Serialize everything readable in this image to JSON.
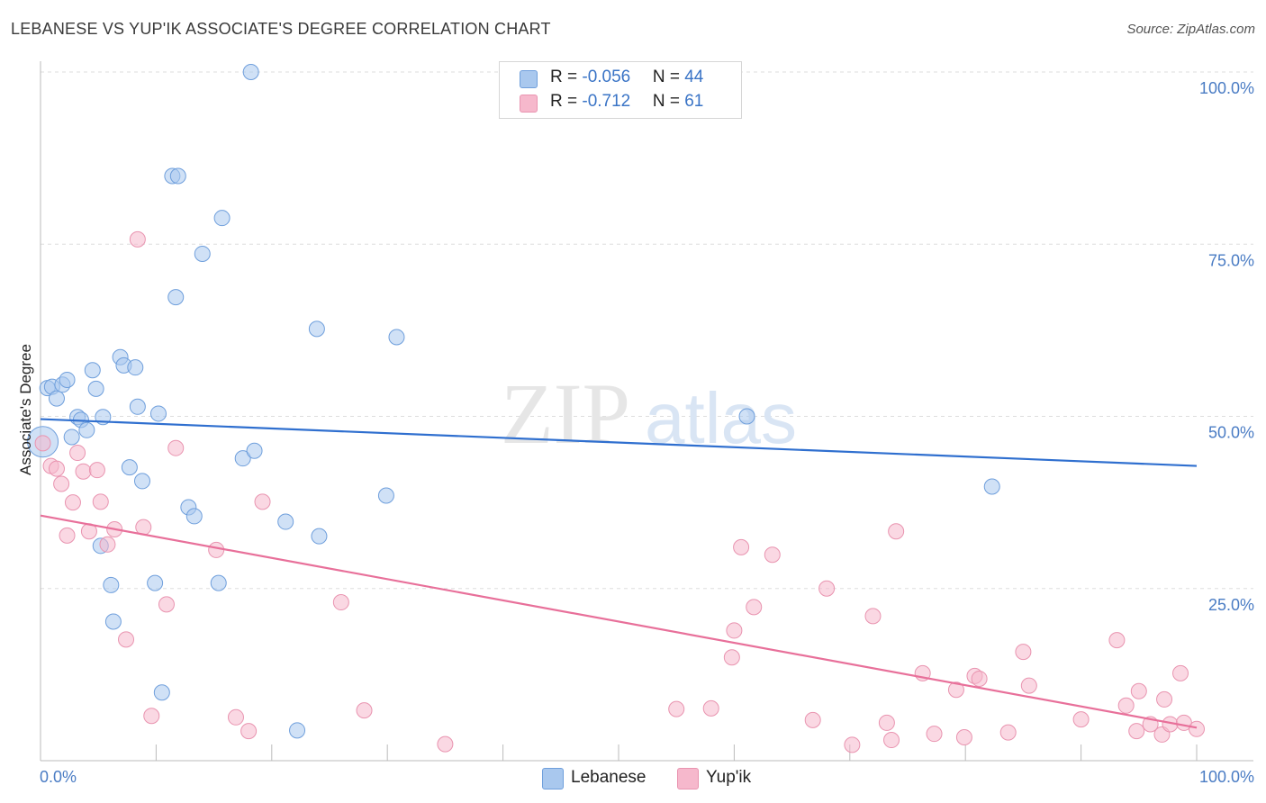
{
  "header": {
    "title": "LEBANESE VS YUP'IK ASSOCIATE'S DEGREE CORRELATION CHART",
    "source": "Source: ZipAtlas.com"
  },
  "watermark": {
    "part1": "ZIP",
    "part2": "atlas"
  },
  "legend": {
    "rows": [
      {
        "r_label": "R = ",
        "r_value": "-0.056",
        "n_label": "N = ",
        "n_value": "44",
        "color": "#a9c8ee"
      },
      {
        "r_label": "R = ",
        "r_value": "-0.712",
        "n_label": "N = ",
        "n_value": "61",
        "color": "#f6b8cc"
      }
    ]
  },
  "chart_data": {
    "type": "scatter",
    "ylabel": "Associate's Degree",
    "x_range": [
      0,
      100
    ],
    "y_range": [
      0,
      100
    ],
    "y_ticks": [
      "25.0%",
      "50.0%",
      "75.0%",
      "100.0%"
    ],
    "x_ticks": [
      "0.0%",
      "100.0%"
    ],
    "grid": "horizontal dashed",
    "legend_position": "bottom",
    "series": [
      {
        "name": "Lebanese",
        "color": "#a9c8ee",
        "stroke": "#6f9fdc",
        "trend_color": "#2f6fcf",
        "trend": [
          [
            0,
            49.6
          ],
          [
            100,
            42.8
          ]
        ],
        "points": [
          [
            0.2,
            46.3
          ],
          [
            0.6,
            54.1
          ],
          [
            1.0,
            54.3
          ],
          [
            1.4,
            52.6
          ],
          [
            1.9,
            54.6
          ],
          [
            2.3,
            55.3
          ],
          [
            2.7,
            47.0
          ],
          [
            3.2,
            49.9
          ],
          [
            3.5,
            49.5
          ],
          [
            4.0,
            48.0
          ],
          [
            4.5,
            56.7
          ],
          [
            4.8,
            54.0
          ],
          [
            5.4,
            49.9
          ],
          [
            5.2,
            31.2
          ],
          [
            6.1,
            25.5
          ],
          [
            6.3,
            20.2
          ],
          [
            6.9,
            58.6
          ],
          [
            7.2,
            57.4
          ],
          [
            7.7,
            42.6
          ],
          [
            8.2,
            57.1
          ],
          [
            8.4,
            51.4
          ],
          [
            8.8,
            40.6
          ],
          [
            9.9,
            25.8
          ],
          [
            10.2,
            50.4
          ],
          [
            10.5,
            9.9
          ],
          [
            11.4,
            84.9
          ],
          [
            11.9,
            84.9
          ],
          [
            11.7,
            67.3
          ],
          [
            12.8,
            36.8
          ],
          [
            13.3,
            35.5
          ],
          [
            14.0,
            73.6
          ],
          [
            15.4,
            25.8
          ],
          [
            15.7,
            78.8
          ],
          [
            17.5,
            43.9
          ],
          [
            18.2,
            100.0
          ],
          [
            18.5,
            45.0
          ],
          [
            21.2,
            34.7
          ],
          [
            22.2,
            4.4
          ],
          [
            23.9,
            62.7
          ],
          [
            24.1,
            32.6
          ],
          [
            29.9,
            38.5
          ],
          [
            30.8,
            61.5
          ],
          [
            61.1,
            50.0
          ],
          [
            82.3,
            39.8
          ]
        ]
      },
      {
        "name": "Yup'ik",
        "color": "#f6b8cc",
        "stroke": "#e994b0",
        "trend_color": "#e8709a",
        "trend": [
          [
            0,
            35.6
          ],
          [
            100,
            4.8
          ]
        ],
        "points": [
          [
            0.2,
            46.1
          ],
          [
            0.9,
            42.8
          ],
          [
            1.4,
            42.4
          ],
          [
            1.8,
            40.2
          ],
          [
            2.3,
            32.7
          ],
          [
            2.8,
            37.5
          ],
          [
            3.2,
            44.7
          ],
          [
            3.7,
            42.0
          ],
          [
            4.2,
            33.3
          ],
          [
            4.9,
            42.2
          ],
          [
            5.2,
            37.6
          ],
          [
            5.8,
            31.4
          ],
          [
            6.4,
            33.6
          ],
          [
            7.4,
            17.6
          ],
          [
            8.4,
            75.7
          ],
          [
            8.9,
            33.9
          ],
          [
            9.6,
            6.5
          ],
          [
            10.9,
            22.7
          ],
          [
            11.7,
            45.4
          ],
          [
            15.2,
            30.6
          ],
          [
            16.9,
            6.3
          ],
          [
            18.0,
            4.3
          ],
          [
            19.2,
            37.6
          ],
          [
            26.0,
            23.0
          ],
          [
            28.0,
            7.3
          ],
          [
            35.0,
            2.4
          ],
          [
            55.0,
            7.5
          ],
          [
            58.0,
            7.6
          ],
          [
            59.8,
            15.0
          ],
          [
            60.0,
            18.9
          ],
          [
            60.6,
            31.0
          ],
          [
            61.7,
            22.3
          ],
          [
            63.3,
            29.9
          ],
          [
            66.8,
            5.9
          ],
          [
            68.0,
            25.0
          ],
          [
            70.2,
            2.3
          ],
          [
            72.0,
            21.0
          ],
          [
            73.2,
            5.5
          ],
          [
            73.6,
            3.0
          ],
          [
            74.0,
            33.3
          ],
          [
            76.3,
            12.7
          ],
          [
            77.3,
            3.9
          ],
          [
            79.2,
            10.3
          ],
          [
            79.9,
            3.4
          ],
          [
            80.8,
            12.3
          ],
          [
            81.2,
            11.9
          ],
          [
            83.7,
            4.1
          ],
          [
            85.0,
            15.8
          ],
          [
            85.5,
            10.9
          ],
          [
            90.0,
            6.0
          ],
          [
            93.1,
            17.5
          ],
          [
            93.9,
            8.0
          ],
          [
            94.8,
            4.3
          ],
          [
            95.0,
            10.1
          ],
          [
            96.0,
            5.3
          ],
          [
            97.0,
            3.8
          ],
          [
            97.2,
            8.9
          ],
          [
            97.7,
            5.3
          ],
          [
            98.6,
            12.7
          ],
          [
            98.9,
            5.5
          ],
          [
            100.0,
            4.6
          ]
        ]
      }
    ]
  }
}
